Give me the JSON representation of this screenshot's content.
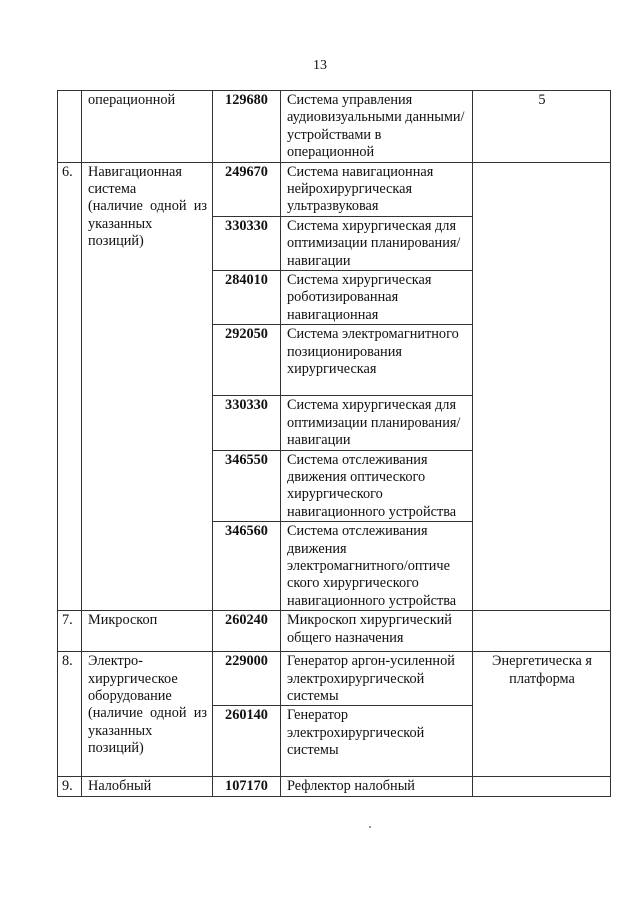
{
  "page_number": "13",
  "rows": {
    "r5": {
      "num": "",
      "name": "операционной",
      "code": "129680",
      "desc": "Система управления аудиовизуальными данными/устройствами в операционной",
      "extra": "5"
    },
    "r6": {
      "num": "6.",
      "name_line1": "Навигационная система",
      "name_line2": "(наличие одной из указанных позиций)",
      "items": [
        {
          "code": "249670",
          "desc": "Система навигационная нейрохирургическая ультразвуковая"
        },
        {
          "code": "330330",
          "desc": "Система хирургическая для оптимизации планирования/навигации"
        },
        {
          "code": "284010",
          "desc": "Система хирургическая роботизированная навигационная"
        },
        {
          "code": "292050",
          "desc": "Система электромагнитного позиционирования хирургическая"
        },
        {
          "code": "330330",
          "desc": "Система хирургическая для оптимизации планирования/навигации"
        },
        {
          "code": "346550",
          "desc": "Система отслеживания движения оптического хирургического навигационного устройства"
        },
        {
          "code": "346560",
          "desc": "Система отслеживания движения электромагнитного/оптиче ского хирургического навигационного устройства"
        }
      ]
    },
    "r7": {
      "num": "7.",
      "name": "Микроскоп",
      "code": "260240",
      "desc": "Микроскоп хирургический общего назначения"
    },
    "r8": {
      "num": "8.",
      "name_line1": "Электро-хирургическое оборудование",
      "name_line2": "(наличие одной из указанных позиций)",
      "extra": "Энергетическа я платформа",
      "items": [
        {
          "code": "229000",
          "desc": "Генератор аргон-усиленной электрохирургической системы"
        },
        {
          "code": "260140",
          "desc": "Генератор электрохирургической системы"
        }
      ]
    },
    "r9": {
      "num": "9.",
      "name": "Налобный",
      "code": "107170",
      "desc": "Рефлектор налобный"
    }
  }
}
